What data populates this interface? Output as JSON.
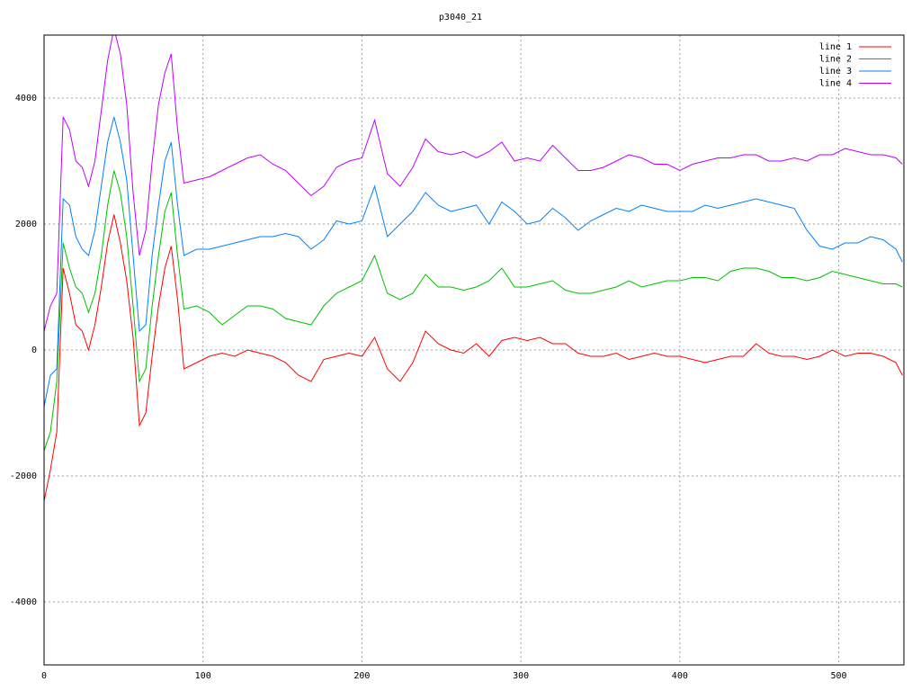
{
  "chart_data": {
    "type": "line",
    "title": "p3040_21",
    "x": [
      0,
      4,
      8,
      12,
      16,
      20,
      24,
      28,
      32,
      36,
      40,
      44,
      48,
      52,
      56,
      60,
      64,
      68,
      72,
      76,
      80,
      84,
      88,
      96,
      104,
      112,
      120,
      128,
      136,
      144,
      152,
      160,
      168,
      176,
      184,
      192,
      200,
      208,
      216,
      224,
      232,
      240,
      248,
      256,
      264,
      272,
      280,
      288,
      296,
      304,
      312,
      320,
      328,
      336,
      344,
      352,
      360,
      368,
      376,
      384,
      392,
      400,
      408,
      416,
      424,
      432,
      440,
      448,
      456,
      464,
      472,
      480,
      488,
      496,
      504,
      512,
      520,
      528,
      536,
      540
    ],
    "series": [
      {
        "name": "line 1",
        "color": "#ff0000",
        "values": [
          -2400,
          -1900,
          -1300,
          1300,
          900,
          400,
          300,
          0,
          400,
          1000,
          1700,
          2150,
          1700,
          1100,
          200,
          -1200,
          -1000,
          -100,
          700,
          1300,
          1650,
          800,
          -300,
          -200,
          -100,
          -50,
          -100,
          0,
          -50,
          -100,
          -200,
          -400,
          -500,
          -150,
          -100,
          -50,
          -100,
          200,
          -300,
          -500,
          -200,
          300,
          100,
          0,
          -50,
          100,
          -100,
          150,
          200,
          150,
          200,
          100,
          100,
          -50,
          -100,
          -100,
          -50,
          -150,
          -100,
          -50,
          -100,
          -100,
          -150,
          -200,
          -150,
          -100,
          -100,
          100,
          -50,
          -100,
          -100,
          -150,
          -100,
          0,
          -100,
          -50,
          -50,
          -100,
          -200,
          -400
        ]
      },
      {
        "name": "line 2",
        "color": "#00c000",
        "values": [
          -1600,
          -1300,
          -500,
          1700,
          1300,
          1000,
          900,
          600,
          900,
          1500,
          2300,
          2850,
          2500,
          1800,
          700,
          -500,
          -300,
          700,
          1500,
          2200,
          2500,
          1500,
          650,
          700,
          600,
          400,
          550,
          700,
          700,
          650,
          500,
          450,
          400,
          700,
          900,
          1000,
          1100,
          1500,
          900,
          800,
          900,
          1200,
          1000,
          1000,
          950,
          1000,
          1100,
          1300,
          1000,
          1000,
          1050,
          1100,
          950,
          900,
          900,
          950,
          1000,
          1100,
          1000,
          1050,
          1100,
          1100,
          1150,
          1150,
          1100,
          1250,
          1300,
          1300,
          1250,
          1150,
          1150,
          1100,
          1150,
          1250,
          1200,
          1150,
          1100,
          1050,
          1050,
          1000
        ]
      },
      {
        "name": "line 3",
        "color": "#0080ff",
        "values": [
          -900,
          -400,
          -300,
          2400,
          2300,
          1800,
          1600,
          1500,
          1900,
          2600,
          3300,
          3700,
          3300,
          2700,
          1500,
          300,
          400,
          1500,
          2300,
          3000,
          3300,
          2300,
          1500,
          1600,
          1600,
          1650,
          1700,
          1750,
          1800,
          1800,
          1850,
          1800,
          1600,
          1750,
          2050,
          2000,
          2050,
          2600,
          1800,
          2000,
          2200,
          2500,
          2300,
          2200,
          2250,
          2300,
          2000,
          2350,
          2200,
          2000,
          2050,
          2250,
          2100,
          1900,
          2050,
          2150,
          2250,
          2200,
          2300,
          2250,
          2200,
          2200,
          2200,
          2300,
          2250,
          2300,
          2350,
          2400,
          2350,
          2300,
          2250,
          1900,
          1650,
          1600,
          1700,
          1700,
          1800,
          1750,
          1600,
          1400
        ]
      },
      {
        "name": "line 4",
        "color": "#c000ff",
        "values": [
          300,
          700,
          900,
          3700,
          3500,
          3000,
          2900,
          2600,
          3000,
          3800,
          4600,
          5100,
          4700,
          3900,
          2500,
          1500,
          1900,
          3000,
          3900,
          4400,
          4700,
          3500,
          2650,
          2700,
          2750,
          2850,
          2950,
          3050,
          3100,
          2950,
          2850,
          2650,
          2450,
          2600,
          2900,
          3000,
          3050,
          3650,
          2800,
          2600,
          2900,
          3350,
          3150,
          3100,
          3150,
          3050,
          3150,
          3300,
          3000,
          3050,
          3000,
          3250,
          3050,
          2850,
          2850,
          2900,
          3000,
          3100,
          3050,
          2950,
          2950,
          2850,
          2950,
          3000,
          3050,
          3050,
          3100,
          3100,
          3000,
          3000,
          3050,
          3000,
          3100,
          3100,
          3200,
          3150,
          3100,
          3100,
          3050,
          2950
        ]
      }
    ],
    "xlim": [
      0,
      541
    ],
    "xticks": [
      0,
      100,
      200,
      300,
      400,
      500
    ],
    "ylim": [
      -5000,
      5000
    ],
    "yticks": [
      -4000,
      -2000,
      0,
      2000,
      4000
    ],
    "grid": true,
    "legend": "top-right"
  }
}
